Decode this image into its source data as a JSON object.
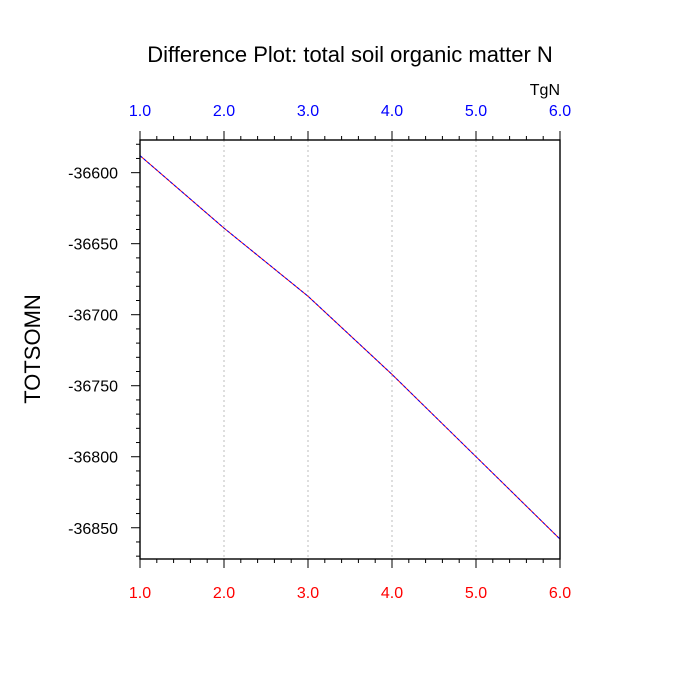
{
  "chart_data": {
    "type": "line",
    "title": "Difference Plot: total soil organic matter N",
    "top_axis_units": "TgN",
    "ylabel": "TOTSOMN",
    "xlim": [
      1.0,
      6.0
    ],
    "ylim": [
      -36872,
      -36577
    ],
    "x_ticks": [
      1.0,
      2.0,
      3.0,
      4.0,
      5.0,
      6.0
    ],
    "x_tick_labels": [
      "1.0",
      "2.0",
      "3.0",
      "4.0",
      "5.0",
      "6.0"
    ],
    "y_ticks": [
      -36600,
      -36650,
      -36700,
      -36750,
      -36800,
      -36850
    ],
    "y_tick_labels": [
      "-36600",
      "-36650",
      "-36700",
      "-36750",
      "-36800",
      "-36850"
    ],
    "grid": "vertical dotted",
    "colors": {
      "top_axis_labels": "#0000ff",
      "bottom_axis_labels": "#ff0000",
      "series_1": "#ff0000",
      "series_2": "#0000ff",
      "grid": "#c8c8c8"
    },
    "series": [
      {
        "x": [
          1,
          2,
          3,
          4,
          5,
          6
        ],
        "values": [
          -36588,
          -36639,
          -36687,
          -36742,
          -36800,
          -36858
        ]
      },
      {
        "x": [
          1,
          2,
          3,
          4,
          5,
          6
        ],
        "values": [
          -36588,
          -36639,
          -36687,
          -36742,
          -36800,
          -36858
        ]
      }
    ]
  }
}
